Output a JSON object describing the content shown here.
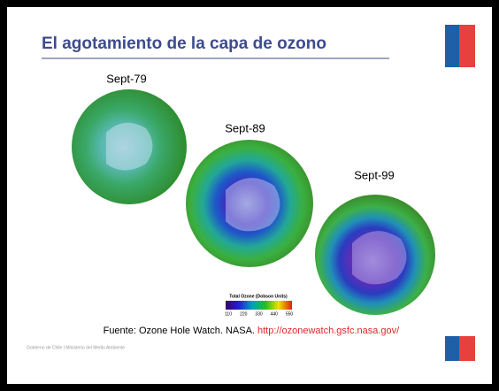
{
  "header": {
    "title": "El agotamiento de la capa de ozono"
  },
  "images": [
    {
      "label": "Sept-79"
    },
    {
      "label": "Sept-89"
    },
    {
      "label": "Sept-99"
    }
  ],
  "colorbar": {
    "title": "Total Ozone (Dobson Units)",
    "ticks": [
      110,
      220,
      330,
      440,
      550
    ]
  },
  "source": {
    "text": "Fuente: Ozone Hole Watch. NASA.",
    "link": "http://ozonewatch.gsfc.nasa.gov/"
  },
  "footer": {
    "text": "Gobierno de Chile | Ministerio del Medio Ambiente"
  }
}
